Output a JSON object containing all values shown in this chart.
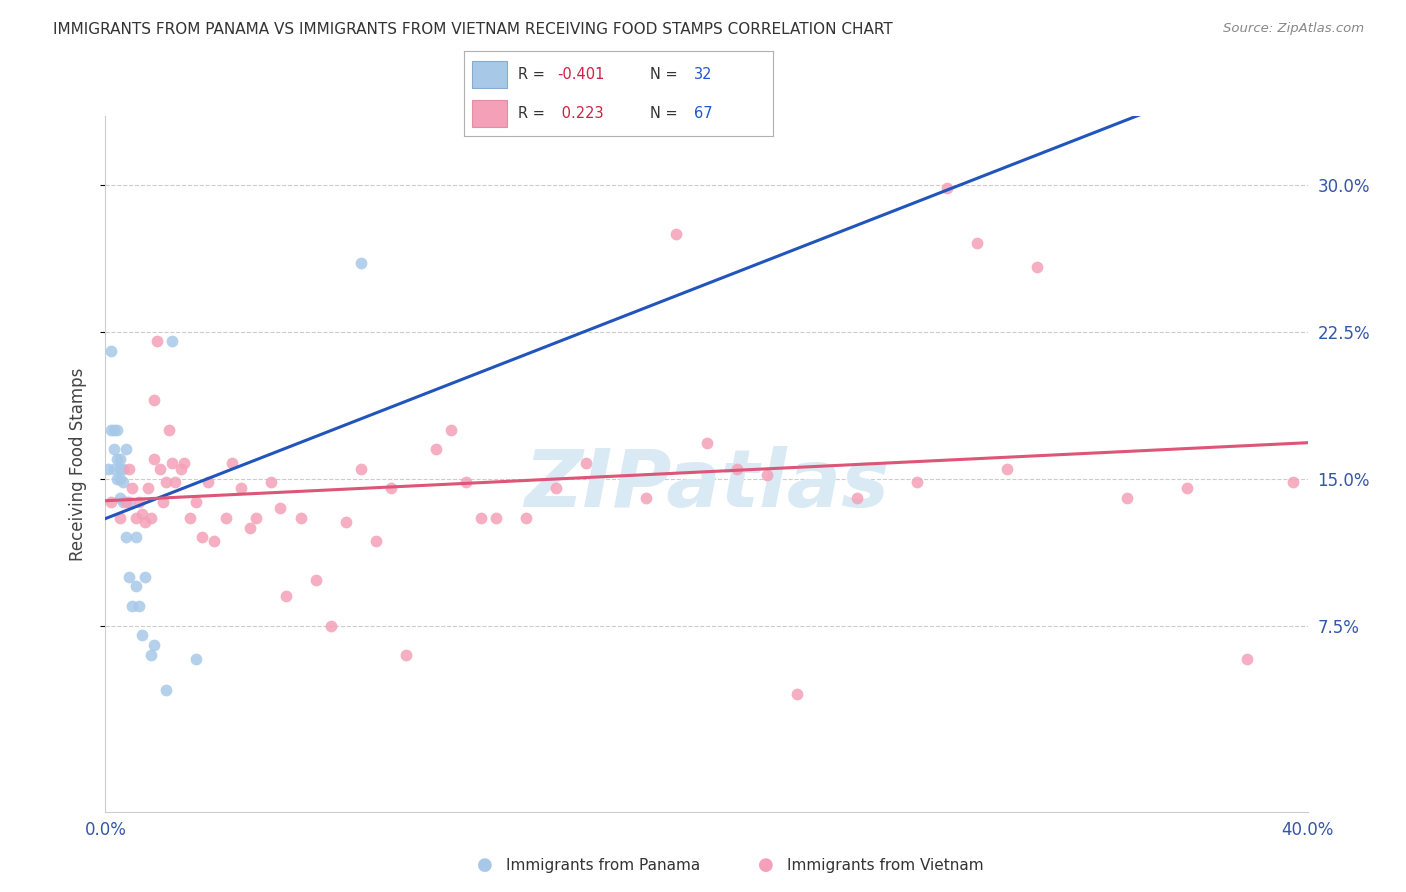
{
  "title": "IMMIGRANTS FROM PANAMA VS IMMIGRANTS FROM VIETNAM RECEIVING FOOD STAMPS CORRELATION CHART",
  "source": "Source: ZipAtlas.com",
  "ylabel": "Receiving Food Stamps",
  "ytick_labels": [
    "30.0%",
    "22.5%",
    "15.0%",
    "7.5%"
  ],
  "ytick_values": [
    0.3,
    0.225,
    0.15,
    0.075
  ],
  "xlim": [
    0.0,
    0.4
  ],
  "ylim": [
    -0.02,
    0.335
  ],
  "color_panama": "#a8c8e8",
  "color_vietnam": "#f4a0b8",
  "trendline_panama_color": "#2255bb",
  "trendline_vietnam_color": "#dd5577",
  "watermark_color": "#daeaf5",
  "legend_label1": "Immigrants from Panama",
  "legend_label2": "Immigrants from Vietnam",
  "panama_x": [
    0.001,
    0.002,
    0.002,
    0.003,
    0.003,
    0.003,
    0.004,
    0.004,
    0.004,
    0.005,
    0.005,
    0.005,
    0.005,
    0.006,
    0.006,
    0.006,
    0.007,
    0.007,
    0.008,
    0.008,
    0.009,
    0.01,
    0.01,
    0.011,
    0.012,
    0.013,
    0.015,
    0.016,
    0.02,
    0.022,
    0.03,
    0.085
  ],
  "panama_y": [
    0.155,
    0.215,
    0.175,
    0.175,
    0.165,
    0.155,
    0.175,
    0.16,
    0.15,
    0.16,
    0.155,
    0.15,
    0.14,
    0.155,
    0.148,
    0.138,
    0.165,
    0.12,
    0.138,
    0.1,
    0.085,
    0.12,
    0.095,
    0.085,
    0.07,
    0.1,
    0.06,
    0.065,
    0.042,
    0.22,
    0.058,
    0.26
  ],
  "vietnam_x": [
    0.002,
    0.005,
    0.007,
    0.008,
    0.009,
    0.01,
    0.011,
    0.012,
    0.013,
    0.014,
    0.015,
    0.016,
    0.016,
    0.017,
    0.018,
    0.019,
    0.02,
    0.021,
    0.022,
    0.023,
    0.025,
    0.026,
    0.028,
    0.03,
    0.032,
    0.034,
    0.036,
    0.04,
    0.042,
    0.045,
    0.048,
    0.05,
    0.055,
    0.058,
    0.06,
    0.065,
    0.07,
    0.075,
    0.08,
    0.085,
    0.09,
    0.095,
    0.1,
    0.11,
    0.115,
    0.12,
    0.125,
    0.13,
    0.14,
    0.15,
    0.16,
    0.18,
    0.19,
    0.2,
    0.21,
    0.22,
    0.23,
    0.25,
    0.27,
    0.28,
    0.29,
    0.3,
    0.31,
    0.34,
    0.36,
    0.38,
    0.395
  ],
  "vietnam_y": [
    0.138,
    0.13,
    0.138,
    0.155,
    0.145,
    0.13,
    0.138,
    0.132,
    0.128,
    0.145,
    0.13,
    0.16,
    0.19,
    0.22,
    0.155,
    0.138,
    0.148,
    0.175,
    0.158,
    0.148,
    0.155,
    0.158,
    0.13,
    0.138,
    0.12,
    0.148,
    0.118,
    0.13,
    0.158,
    0.145,
    0.125,
    0.13,
    0.148,
    0.135,
    0.09,
    0.13,
    0.098,
    0.075,
    0.128,
    0.155,
    0.118,
    0.145,
    0.06,
    0.165,
    0.175,
    0.148,
    0.13,
    0.13,
    0.13,
    0.145,
    0.158,
    0.14,
    0.275,
    0.168,
    0.155,
    0.152,
    0.04,
    0.14,
    0.148,
    0.298,
    0.27,
    0.155,
    0.258,
    0.14,
    0.145,
    0.058,
    0.148
  ]
}
